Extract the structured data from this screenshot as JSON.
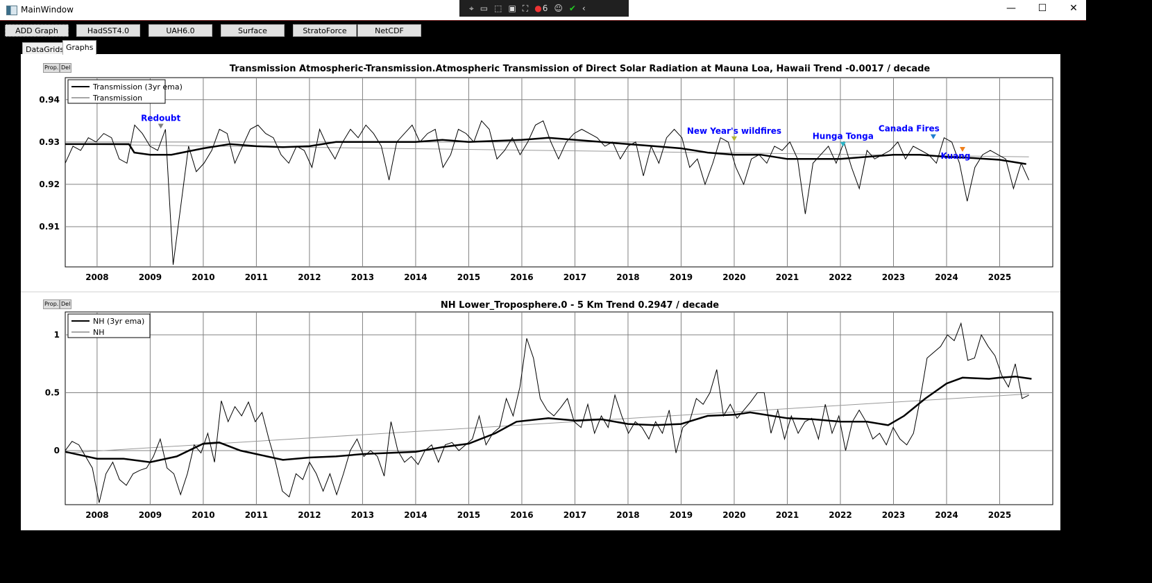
{
  "window": {
    "title": "MainWindow",
    "minimize": "—",
    "maximize": "☐",
    "close": "✕"
  },
  "debug_toolbar": {
    "badge_count": "6"
  },
  "toolbar": {
    "buttons": [
      "ADD Graph",
      "HadSST4.0",
      "UAH6.0",
      "Surface",
      "StratoForce",
      "NetCDF"
    ]
  },
  "tabs": [
    "DataGrids",
    "Graphs"
  ],
  "graph_buttons": {
    "prop": "Prop.",
    "del": "Del"
  },
  "chart_data": [
    {
      "type": "line",
      "title": "Transmission Atmospheric-Transmission.Atmospheric Transmission of Direct Solar Radiation at Mauna Loa, Hawaii Trend -0.0017 / decade",
      "xlim": [
        2007.4,
        2026.0
      ],
      "ylim": [
        0.9005,
        0.9452
      ],
      "xticks": [
        2008,
        2009,
        2010,
        2011,
        2012,
        2013,
        2014,
        2015,
        2016,
        2017,
        2018,
        2019,
        2020,
        2021,
        2022,
        2023,
        2024,
        2025
      ],
      "yticks": [
        {
          "v": 0.91,
          "label": "0.91"
        },
        {
          "v": 0.92,
          "label": "0.92"
        },
        {
          "v": 0.93,
          "label": "0.93"
        },
        {
          "v": 0.94,
          "label": "0.94"
        }
      ],
      "legend": {
        "placement": "top-left",
        "entries": [
          "Transmission (3yr ema)",
          "Transmission"
        ]
      },
      "raw": {
        "x_start": 2007.4,
        "x_end": 2025.55,
        "values": [
          0.925,
          0.929,
          0.928,
          0.931,
          0.93,
          0.932,
          0.931,
          0.926,
          0.925,
          0.934,
          0.932,
          0.929,
          0.928,
          0.933,
          0.901,
          0.915,
          0.929,
          0.923,
          0.925,
          0.928,
          0.933,
          0.932,
          0.925,
          0.929,
          0.933,
          0.934,
          0.932,
          0.931,
          0.927,
          0.925,
          0.929,
          0.928,
          0.924,
          0.933,
          0.929,
          0.926,
          0.93,
          0.933,
          0.931,
          0.934,
          0.932,
          0.929,
          0.921,
          0.93,
          0.932,
          0.934,
          0.93,
          0.932,
          0.933,
          0.924,
          0.927,
          0.933,
          0.932,
          0.93,
          0.935,
          0.933,
          0.926,
          0.928,
          0.931,
          0.927,
          0.93,
          0.934,
          0.935,
          0.93,
          0.926,
          0.93,
          0.932,
          0.933,
          0.932,
          0.931,
          0.929,
          0.93,
          0.926,
          0.929,
          0.93,
          0.922,
          0.929,
          0.925,
          0.931,
          0.933,
          0.931,
          0.924,
          0.926,
          0.92,
          0.925,
          0.931,
          0.93,
          0.924,
          0.92,
          0.926,
          0.927,
          0.925,
          0.929,
          0.928,
          0.93,
          0.926,
          0.913,
          0.925,
          0.927,
          0.929,
          0.925,
          0.93,
          0.924,
          0.919,
          0.928,
          0.926,
          0.927,
          0.928,
          0.93,
          0.926,
          0.929,
          0.928,
          0.927,
          0.925,
          0.931,
          0.93,
          0.925,
          0.916,
          0.924,
          0.927,
          0.928,
          0.927,
          0.926,
          0.919,
          0.925,
          0.921
        ]
      },
      "ema": [
        [
          2007.4,
          0.9295
        ],
        [
          2008,
          0.9295
        ],
        [
          2008.6,
          0.9295
        ],
        [
          2008.7,
          0.9275
        ],
        [
          2009,
          0.927
        ],
        [
          2009.4,
          0.927
        ],
        [
          2010,
          0.9285
        ],
        [
          2010.5,
          0.9295
        ],
        [
          2011,
          0.929
        ],
        [
          2011.5,
          0.9288
        ],
        [
          2012,
          0.929
        ],
        [
          2012.5,
          0.93
        ],
        [
          2013,
          0.93
        ],
        [
          2014,
          0.93
        ],
        [
          2014.5,
          0.9305
        ],
        [
          2015,
          0.93
        ],
        [
          2016,
          0.9305
        ],
        [
          2016.5,
          0.931
        ],
        [
          2017,
          0.9305
        ],
        [
          2017.5,
          0.93
        ],
        [
          2018,
          0.9295
        ],
        [
          2018.5,
          0.929
        ],
        [
          2019,
          0.9285
        ],
        [
          2019.5,
          0.9275
        ],
        [
          2020,
          0.927
        ],
        [
          2020.5,
          0.927
        ],
        [
          2021,
          0.926
        ],
        [
          2021.5,
          0.926
        ],
        [
          2022,
          0.926
        ],
        [
          2022.5,
          0.9265
        ],
        [
          2023,
          0.927
        ],
        [
          2023.5,
          0.927
        ],
        [
          2024,
          0.9265
        ],
        [
          2024.5,
          0.9262
        ],
        [
          2025,
          0.9258
        ],
        [
          2025.5,
          0.9248
        ]
      ],
      "trend": [
        [
          2007.4,
          0.9295
        ],
        [
          2025.55,
          0.9265
        ]
      ],
      "annotations": [
        {
          "label": "Redoubt",
          "x": 2009.2,
          "y": 0.9335,
          "color": "#808080"
        },
        {
          "label": "New Year's wildfires",
          "x": 2020.0,
          "y": 0.9305,
          "color": "#b5b536"
        },
        {
          "label": "Hunga Tonga",
          "x": 2022.05,
          "y": 0.9292,
          "color": "#2bb5c8"
        },
        {
          "label": "Canada Fires",
          "x": 2023.75,
          "y": 0.931,
          "color": "#1e7fd0"
        },
        {
          "label": "Kuang",
          "x": 2024.3,
          "y": 0.928,
          "color": "#f07f1a"
        }
      ],
      "label_color": "#0000ff"
    },
    {
      "type": "line",
      "title": "NH Lower_Troposphere.0 - 5 Km Trend 0.2947 / decade",
      "xlim": [
        2007.4,
        2026.0
      ],
      "ylim": [
        -0.467,
        1.198
      ],
      "xticks": [
        2008,
        2009,
        2010,
        2011,
        2012,
        2013,
        2014,
        2015,
        2016,
        2017,
        2018,
        2019,
        2020,
        2021,
        2022,
        2023,
        2024,
        2025
      ],
      "yticks": [
        {
          "v": 0,
          "label": "0"
        },
        {
          "v": 0.5,
          "label": "0.5"
        },
        {
          "v": 1,
          "label": "1"
        }
      ],
      "legend": {
        "placement": "top-left",
        "entries": [
          "NH (3yr ema)",
          "NH"
        ]
      },
      "raw": {
        "x_start": 2007.4,
        "x_end": 2025.55,
        "values": [
          0.0,
          0.08,
          0.05,
          -0.05,
          -0.15,
          -0.45,
          -0.2,
          -0.1,
          -0.25,
          -0.3,
          -0.2,
          -0.17,
          -0.15,
          -0.05,
          0.1,
          -0.15,
          -0.2,
          -0.38,
          -0.2,
          0.05,
          -0.02,
          0.15,
          -0.1,
          0.43,
          0.25,
          0.38,
          0.3,
          0.42,
          0.25,
          0.33,
          0.1,
          -0.1,
          -0.35,
          -0.4,
          -0.2,
          -0.25,
          -0.1,
          -0.2,
          -0.35,
          -0.2,
          -0.38,
          -0.2,
          0.0,
          0.1,
          -0.05,
          0.0,
          -0.05,
          -0.22,
          0.25,
          0.0,
          -0.1,
          -0.05,
          -0.12,
          0.0,
          0.05,
          -0.1,
          0.05,
          0.07,
          0.0,
          0.05,
          0.1,
          0.3,
          0.05,
          0.15,
          0.2,
          0.45,
          0.3,
          0.55,
          0.97,
          0.8,
          0.45,
          0.35,
          0.3,
          0.37,
          0.45,
          0.25,
          0.2,
          0.4,
          0.15,
          0.3,
          0.2,
          0.48,
          0.3,
          0.15,
          0.25,
          0.2,
          0.1,
          0.25,
          0.15,
          0.35,
          -0.02,
          0.2,
          0.25,
          0.45,
          0.4,
          0.5,
          0.7,
          0.3,
          0.4,
          0.28,
          0.35,
          0.42,
          0.5,
          0.5,
          0.15,
          0.35,
          0.1,
          0.3,
          0.15,
          0.25,
          0.28,
          0.1,
          0.4,
          0.15,
          0.3,
          0.0,
          0.25,
          0.35,
          0.25,
          0.1,
          0.15,
          0.05,
          0.2,
          0.1,
          0.05,
          0.15,
          0.45,
          0.8,
          0.85,
          0.9,
          1.0,
          0.95,
          1.1,
          0.78,
          0.8,
          1.0,
          0.9,
          0.82,
          0.65,
          0.55,
          0.75,
          0.45,
          0.48
        ]
      },
      "ema": [
        [
          2007.4,
          -0.01
        ],
        [
          2008,
          -0.07
        ],
        [
          2008.5,
          -0.07
        ],
        [
          2009,
          -0.1
        ],
        [
          2009.5,
          -0.05
        ],
        [
          2010,
          0.06
        ],
        [
          2010.3,
          0.07
        ],
        [
          2010.7,
          0.0
        ],
        [
          2011,
          -0.03
        ],
        [
          2011.5,
          -0.08
        ],
        [
          2012,
          -0.06
        ],
        [
          2012.5,
          -0.05
        ],
        [
          2013,
          -0.03
        ],
        [
          2014,
          -0.01
        ],
        [
          2014.5,
          0.03
        ],
        [
          2015,
          0.06
        ],
        [
          2015.5,
          0.15
        ],
        [
          2015.9,
          0.25
        ],
        [
          2016.5,
          0.28
        ],
        [
          2017,
          0.26
        ],
        [
          2017.5,
          0.27
        ],
        [
          2018,
          0.23
        ],
        [
          2018.5,
          0.22
        ],
        [
          2019,
          0.23
        ],
        [
          2019.5,
          0.3
        ],
        [
          2020,
          0.31
        ],
        [
          2020.3,
          0.33
        ],
        [
          2021,
          0.28
        ],
        [
          2021.5,
          0.27
        ],
        [
          2022,
          0.25
        ],
        [
          2022.5,
          0.25
        ],
        [
          2022.9,
          0.22
        ],
        [
          2023.2,
          0.3
        ],
        [
          2023.6,
          0.45
        ],
        [
          2024,
          0.58
        ],
        [
          2024.3,
          0.63
        ],
        [
          2024.8,
          0.62
        ],
        [
          2025,
          0.63
        ],
        [
          2025.3,
          0.64
        ],
        [
          2025.6,
          0.62
        ]
      ],
      "trend": [
        [
          2007.4,
          -0.02
        ],
        [
          2025.55,
          0.49
        ]
      ],
      "annotations": []
    }
  ]
}
